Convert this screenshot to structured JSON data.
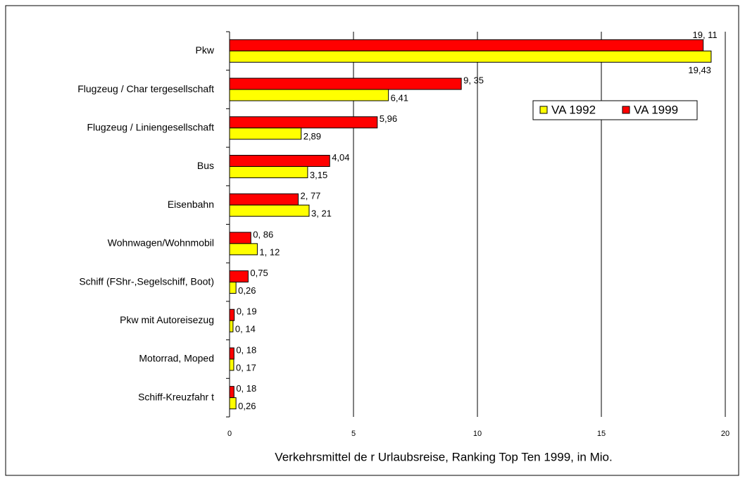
{
  "chart_data": {
    "type": "barh",
    "title": "Verkehrsmittel de r Urlaubsreise, Ranking Top Ten 1999, in Mio.",
    "categories": [
      "Pkw",
      "Flugzeug / Char tergesellschaft",
      "Flugzeug / Liniengesellschaft",
      "Bus",
      "Eisenbahn",
      "Wohnwagen/Wohnmobil",
      "Schiff (FShr-,Segelschiff, Boot)",
      "Pkw mit Autoreisezug",
      "Motorrad, Moped",
      "Schiff-Kreuzfahr t"
    ],
    "series": [
      {
        "name": "VA 1992",
        "color": "#ffff00",
        "values": [
          19.43,
          6.41,
          2.89,
          3.15,
          3.21,
          1.12,
          0.26,
          0.14,
          0.17,
          0.26
        ],
        "value_labels": [
          "19,43",
          "6,41",
          "2,89",
          "3,15",
          "3, 21",
          "1, 12",
          "0,26",
          "0, 14",
          "0, 17",
          "0,26"
        ]
      },
      {
        "name": "VA 1999",
        "color": "#ff0000",
        "values": [
          19.11,
          9.35,
          5.96,
          4.04,
          2.77,
          0.86,
          0.75,
          0.19,
          0.18,
          0.18
        ],
        "value_labels": [
          "19, 11",
          "9, 35",
          "5,96",
          "4,04",
          "2, 77",
          "0, 86",
          "0,75",
          "0, 19",
          "0, 18",
          "0, 18"
        ]
      }
    ],
    "xlim": [
      0,
      20
    ],
    "xticks": [
      0,
      5,
      10,
      15,
      20
    ],
    "grid": true,
    "legend": "upper right"
  }
}
